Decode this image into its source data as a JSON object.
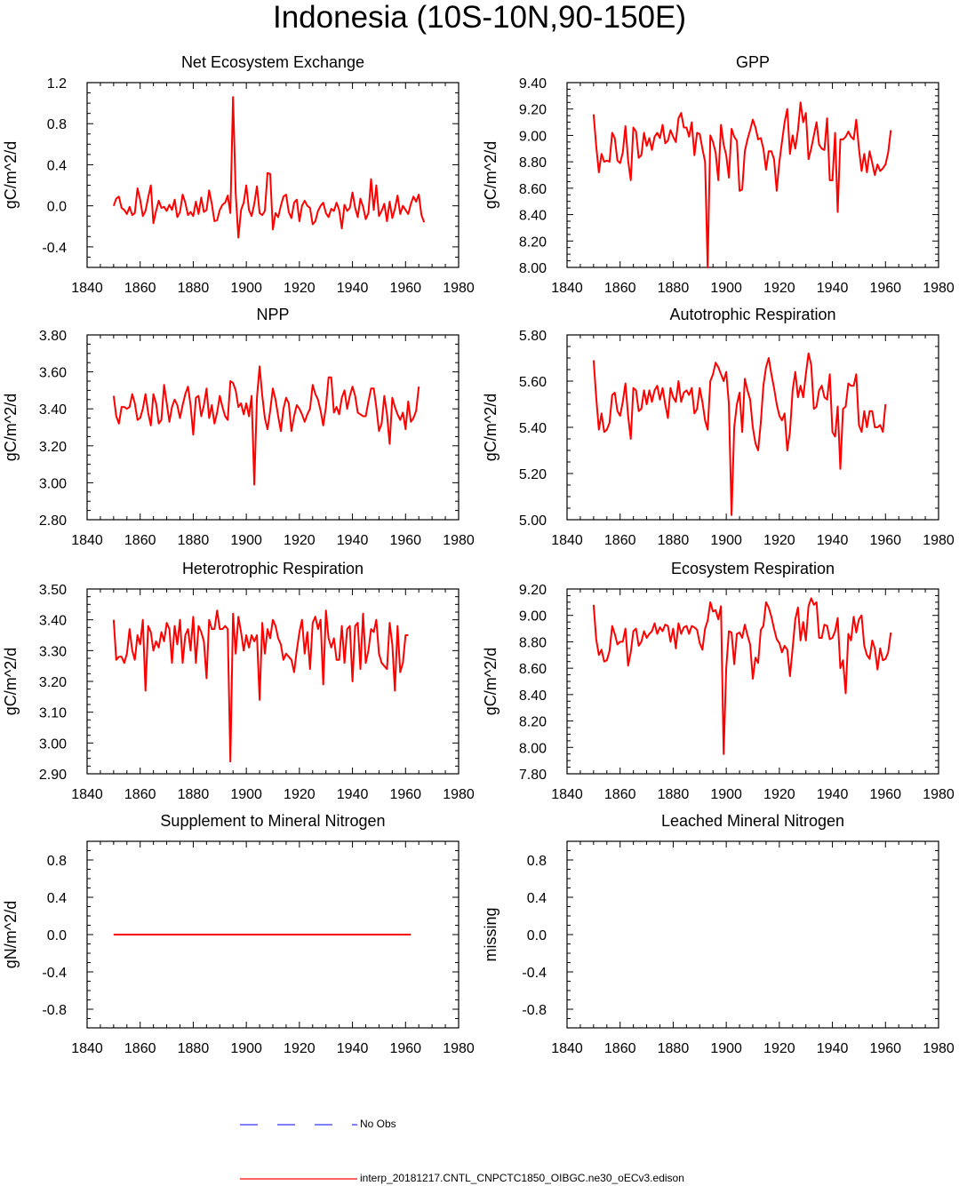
{
  "title": "Indonesia (10S-10N,90-150E)",
  "colors": {
    "model": "#ff0000",
    "obs": "#0000ff",
    "axis": "#000000"
  },
  "legend": {
    "obs_label": "No Obs",
    "model_label": "interp_20181217.CNTL_CNPCTC1850_OIBGC.ne30_oECv3.edison"
  },
  "chart_data": [
    {
      "type": "line",
      "title": "Net Ecosystem Exchange",
      "ylabel": "gC/m^2/d",
      "xlim": [
        1840,
        1980
      ],
      "ylim": [
        -0.6,
        1.2
      ],
      "xticks": [
        "1840",
        "1860",
        "1880",
        "1900",
        "1920",
        "1940",
        "1960",
        "1980"
      ],
      "yticks": [
        "-0.4",
        "0.0",
        "0.4",
        "0.8",
        "1.2"
      ],
      "series": [
        {
          "x_start": 1850,
          "values": [
            0.0,
            0.07,
            0.09,
            -0.02,
            -0.04,
            -0.08,
            -0.01,
            -0.09,
            -0.07,
            0.17,
            0.06,
            -0.1,
            -0.05,
            0.08,
            0.2,
            -0.17,
            -0.05,
            0.05,
            -0.02,
            -0.01,
            -0.05,
            0.01,
            -0.04,
            0.06,
            -0.11,
            -0.06,
            0.11,
            0.03,
            -0.09,
            -0.06,
            -0.1,
            0.04,
            -0.08,
            0.08,
            -0.06,
            -0.04,
            0.15,
            0.02,
            -0.15,
            -0.14,
            -0.04,
            0.01,
            0.03,
            0.1,
            -0.07,
            1.06,
            0.12,
            -0.31,
            -0.04,
            0.03,
            0.2,
            -0.04,
            -0.1,
            0.02,
            0.19,
            -0.07,
            -0.09,
            -0.05,
            0.32,
            0.31,
            -0.23,
            -0.07,
            -0.11,
            0.0,
            0.09,
            0.11,
            -0.06,
            -0.12,
            0.03,
            0.06,
            -0.15,
            0.0,
            0.05,
            0.0,
            -0.02,
            -0.18,
            -0.15,
            -0.05,
            0.0,
            0.03,
            -0.07,
            -0.11,
            -0.03,
            -0.05,
            0.03,
            -0.04,
            -0.22,
            0.01,
            -0.05,
            -0.02,
            0.13,
            -0.02,
            -0.11,
            0.07,
            -0.01,
            -0.13,
            -0.07,
            0.26,
            -0.04,
            0.2,
            -0.1,
            -0.05,
            0.02,
            -0.15,
            0.04,
            -0.12,
            -0.03,
            0.1,
            -0.08,
            0.0,
            -0.04,
            -0.08,
            0.02,
            0.09,
            0.04,
            0.11,
            -0.09,
            -0.16
          ]
        }
      ]
    },
    {
      "type": "line",
      "title": "GPP",
      "ylabel": "gC/m^2/d",
      "xlim": [
        1840,
        1980
      ],
      "ylim": [
        8.0,
        9.4
      ],
      "xticks": [
        "1840",
        "1860",
        "1880",
        "1900",
        "1920",
        "1940",
        "1960",
        "1980"
      ],
      "yticks": [
        "8.00",
        "8.20",
        "8.40",
        "8.60",
        "8.80",
        "9.00",
        "9.20",
        "9.40"
      ],
      "series": [
        {
          "x_start": 1850,
          "values": [
            9.16,
            8.92,
            8.72,
            8.86,
            8.8,
            8.81,
            8.8,
            9.02,
            8.98,
            8.81,
            8.79,
            8.87,
            9.07,
            8.81,
            8.66,
            9.06,
            9.03,
            8.83,
            8.85,
            9.02,
            8.92,
            8.98,
            8.89,
            8.99,
            9.02,
            8.98,
            9.08,
            8.94,
            8.96,
            9.04,
            8.99,
            8.95,
            9.13,
            9.17,
            9.06,
            9.06,
            8.99,
            9.1,
            8.85,
            9.02,
            9.01,
            8.9,
            8.8,
            8.0,
            9.0,
            8.95,
            8.87,
            8.66,
            9.08,
            8.93,
            8.85,
            8.68,
            9.05,
            8.99,
            8.96,
            8.58,
            8.59,
            8.88,
            8.97,
            9.04,
            9.12,
            9.06,
            8.97,
            8.98,
            8.9,
            8.74,
            8.88,
            8.88,
            8.82,
            8.58,
            8.8,
            8.95,
            9.1,
            9.2,
            8.86,
            9.0,
            8.9,
            9.04,
            9.25,
            9.1,
            9.17,
            8.82,
            8.9,
            9.0,
            9.1,
            8.93,
            8.9,
            8.89,
            9.13,
            8.66,
            8.66,
            9.02,
            8.42,
            8.97,
            8.97,
            8.99,
            9.03,
            8.99,
            8.97,
            9.12,
            8.9,
            8.73,
            8.86,
            8.72,
            8.88,
            8.79,
            8.7,
            8.78,
            8.73,
            8.75,
            8.78,
            8.87,
            9.04
          ]
        }
      ]
    },
    {
      "type": "line",
      "title": "NPP",
      "ylabel": "gC/m^2/d",
      "xlim": [
        1840,
        1980
      ],
      "ylim": [
        2.8,
        3.8
      ],
      "xticks": [
        "1840",
        "1860",
        "1880",
        "1900",
        "1920",
        "1940",
        "1960",
        "1980"
      ],
      "yticks": [
        "2.80",
        "3.00",
        "3.20",
        "3.40",
        "3.60",
        "3.80"
      ],
      "series": [
        {
          "x_start": 1850,
          "values": [
            3.47,
            3.36,
            3.32,
            3.41,
            3.41,
            3.4,
            3.41,
            3.48,
            3.43,
            3.34,
            3.35,
            3.4,
            3.48,
            3.38,
            3.31,
            3.48,
            3.43,
            3.32,
            3.34,
            3.53,
            3.43,
            3.33,
            3.41,
            3.45,
            3.42,
            3.35,
            3.42,
            3.48,
            3.52,
            3.42,
            3.26,
            3.46,
            3.47,
            3.36,
            3.42,
            3.51,
            3.35,
            3.42,
            3.32,
            3.38,
            3.47,
            3.41,
            3.36,
            3.34,
            3.55,
            3.54,
            3.5,
            3.41,
            3.43,
            3.37,
            3.43,
            3.36,
            3.47,
            2.99,
            3.46,
            3.63,
            3.47,
            3.35,
            3.29,
            3.39,
            3.51,
            3.45,
            3.36,
            3.28,
            3.4,
            3.46,
            3.43,
            3.28,
            3.36,
            3.42,
            3.4,
            3.37,
            3.33,
            3.37,
            3.4,
            3.53,
            3.48,
            3.45,
            3.39,
            3.31,
            3.41,
            3.57,
            3.57,
            3.38,
            3.41,
            3.37,
            3.46,
            3.5,
            3.4,
            3.47,
            3.52,
            3.47,
            3.38,
            3.37,
            3.36,
            3.36,
            3.44,
            3.51,
            3.51,
            3.41,
            3.28,
            3.32,
            3.47,
            3.37,
            3.21,
            3.46,
            3.41,
            3.37,
            3.34,
            3.38,
            3.29,
            3.44,
            3.33,
            3.35,
            3.39,
            3.52
          ]
        }
      ]
    },
    {
      "type": "line",
      "title": "Autotrophic Respiration",
      "ylabel": "gC/m^2/d",
      "xlim": [
        1840,
        1980
      ],
      "ylim": [
        5.0,
        5.8
      ],
      "xticks": [
        "1840",
        "1860",
        "1880",
        "1900",
        "1920",
        "1940",
        "1960",
        "1980"
      ],
      "yticks": [
        "5.00",
        "5.20",
        "5.40",
        "5.60",
        "5.80"
      ],
      "series": [
        {
          "x_start": 1850,
          "values": [
            5.69,
            5.53,
            5.39,
            5.46,
            5.38,
            5.39,
            5.42,
            5.54,
            5.55,
            5.47,
            5.45,
            5.51,
            5.59,
            5.45,
            5.35,
            5.57,
            5.56,
            5.47,
            5.48,
            5.56,
            5.5,
            5.56,
            5.51,
            5.56,
            5.58,
            5.52,
            5.57,
            5.5,
            5.44,
            5.57,
            5.53,
            5.51,
            5.6,
            5.51,
            5.55,
            5.56,
            5.54,
            5.57,
            5.46,
            5.48,
            5.57,
            5.51,
            5.43,
            5.39,
            5.6,
            5.63,
            5.68,
            5.66,
            5.63,
            5.6,
            5.64,
            5.5,
            5.02,
            5.4,
            5.5,
            5.55,
            5.38,
            5.61,
            5.56,
            5.52,
            5.4,
            5.33,
            5.3,
            5.42,
            5.58,
            5.66,
            5.7,
            5.63,
            5.57,
            5.5,
            5.45,
            5.43,
            5.46,
            5.3,
            5.38,
            5.56,
            5.64,
            5.53,
            5.58,
            5.53,
            5.63,
            5.72,
            5.67,
            5.48,
            5.49,
            5.56,
            5.58,
            5.53,
            5.52,
            5.63,
            5.38,
            5.36,
            5.49,
            5.22,
            5.48,
            5.49,
            5.59,
            5.58,
            5.58,
            5.63,
            5.41,
            5.38,
            5.47,
            5.4,
            5.47,
            5.47,
            5.4,
            5.4,
            5.41,
            5.38,
            5.5
          ]
        }
      ]
    },
    {
      "type": "line",
      "title": "Heterotrophic Respiration",
      "ylabel": "gC/m^2/d",
      "xlim": [
        1840,
        1980
      ],
      "ylim": [
        2.9,
        3.5
      ],
      "xticks": [
        "1840",
        "1860",
        "1880",
        "1900",
        "1920",
        "1940",
        "1960",
        "1980"
      ],
      "yticks": [
        "2.90",
        "3.00",
        "3.10",
        "3.20",
        "3.30",
        "3.40",
        "3.50"
      ],
      "series": [
        {
          "x_start": 1850,
          "values": [
            3.4,
            3.27,
            3.28,
            3.28,
            3.26,
            3.29,
            3.37,
            3.3,
            3.27,
            3.35,
            3.32,
            3.4,
            3.17,
            3.38,
            3.36,
            3.3,
            3.33,
            3.31,
            3.36,
            3.33,
            3.39,
            3.37,
            3.26,
            3.38,
            3.32,
            3.4,
            3.26,
            3.35,
            3.37,
            3.3,
            3.41,
            3.26,
            3.38,
            3.36,
            3.33,
            3.21,
            3.4,
            3.37,
            3.37,
            3.43,
            3.37,
            3.37,
            3.38,
            3.37,
            2.94,
            3.42,
            3.29,
            3.41,
            3.36,
            3.3,
            3.35,
            3.31,
            3.35,
            3.33,
            3.35,
            3.14,
            3.39,
            3.29,
            3.37,
            3.34,
            3.4,
            3.38,
            3.34,
            3.32,
            3.27,
            3.29,
            3.28,
            3.27,
            3.23,
            3.3,
            3.36,
            3.4,
            3.29,
            3.36,
            3.24,
            3.39,
            3.41,
            3.37,
            3.4,
            3.19,
            3.43,
            3.34,
            3.31,
            3.34,
            3.27,
            3.27,
            3.38,
            3.26,
            3.37,
            3.38,
            3.2,
            3.38,
            3.39,
            3.24,
            3.42,
            3.26,
            3.3,
            3.37,
            3.36,
            3.4,
            3.29,
            3.26,
            3.25,
            3.24,
            3.39,
            3.32,
            3.17,
            3.38,
            3.23,
            3.26,
            3.35,
            3.35
          ]
        }
      ]
    },
    {
      "type": "line",
      "title": "Ecosystem Respiration",
      "ylabel": "gC/m^2/d",
      "xlim": [
        1840,
        1980
      ],
      "ylim": [
        7.8,
        9.2
      ],
      "xticks": [
        "1840",
        "1860",
        "1880",
        "1900",
        "1920",
        "1940",
        "1960",
        "1980"
      ],
      "yticks": [
        "7.80",
        "8.00",
        "8.20",
        "8.40",
        "8.60",
        "8.80",
        "9.00",
        "9.20"
      ],
      "series": [
        {
          "x_start": 1850,
          "values": [
            9.08,
            8.82,
            8.7,
            8.74,
            8.65,
            8.66,
            8.73,
            8.92,
            8.86,
            8.78,
            8.8,
            8.8,
            8.9,
            8.62,
            8.72,
            8.88,
            8.9,
            8.77,
            8.8,
            8.88,
            8.83,
            8.86,
            8.88,
            8.94,
            8.86,
            8.91,
            8.88,
            8.93,
            8.92,
            8.8,
            8.9,
            8.75,
            8.94,
            8.86,
            8.91,
            8.92,
            8.86,
            8.92,
            8.91,
            8.89,
            8.79,
            8.74,
            8.9,
            8.96,
            9.1,
            9.03,
            9.04,
            8.97,
            9.07,
            7.95,
            8.6,
            8.88,
            8.87,
            8.63,
            8.86,
            8.87,
            8.83,
            8.93,
            8.85,
            8.78,
            8.52,
            8.68,
            8.64,
            8.89,
            8.92,
            9.1,
            9.06,
            8.99,
            8.9,
            8.82,
            8.79,
            8.72,
            8.77,
            8.74,
            8.54,
            8.75,
            8.97,
            9.06,
            8.81,
            8.95,
            8.81,
            9.07,
            9.13,
            9.08,
            9.1,
            8.83,
            8.83,
            8.93,
            8.92,
            8.82,
            8.83,
            8.88,
            8.98,
            8.6,
            8.66,
            8.41,
            8.86,
            8.81,
            8.99,
            8.87,
            8.97,
            9.0,
            8.77,
            8.7,
            8.67,
            8.81,
            8.75,
            8.59,
            8.75,
            8.66,
            8.67,
            8.72,
            8.87
          ]
        }
      ]
    },
    {
      "type": "line",
      "title": "Supplement to Mineral Nitrogen",
      "ylabel": "gN/m^2/d",
      "xlim": [
        1840,
        1980
      ],
      "ylim": [
        -1.0,
        1.0
      ],
      "xticks": [
        "1840",
        "1860",
        "1880",
        "1900",
        "1920",
        "1940",
        "1960",
        "1980"
      ],
      "yticks": [
        "-0.8",
        "-0.4",
        "0.0",
        "0.4",
        "0.8"
      ],
      "series": [
        {
          "x_start": 1850,
          "x_end": 1962,
          "constant": 0.0
        }
      ]
    },
    {
      "type": "line",
      "title": "Leached Mineral Nitrogen",
      "ylabel": "missing",
      "xlim": [
        1840,
        1980
      ],
      "ylim": [
        -1.0,
        1.0
      ],
      "xticks": [
        "1840",
        "1860",
        "1880",
        "1900",
        "1920",
        "1940",
        "1960",
        "1980"
      ],
      "yticks": [
        "-0.8",
        "-0.4",
        "0.0",
        "0.4",
        "0.8"
      ],
      "series": []
    }
  ]
}
